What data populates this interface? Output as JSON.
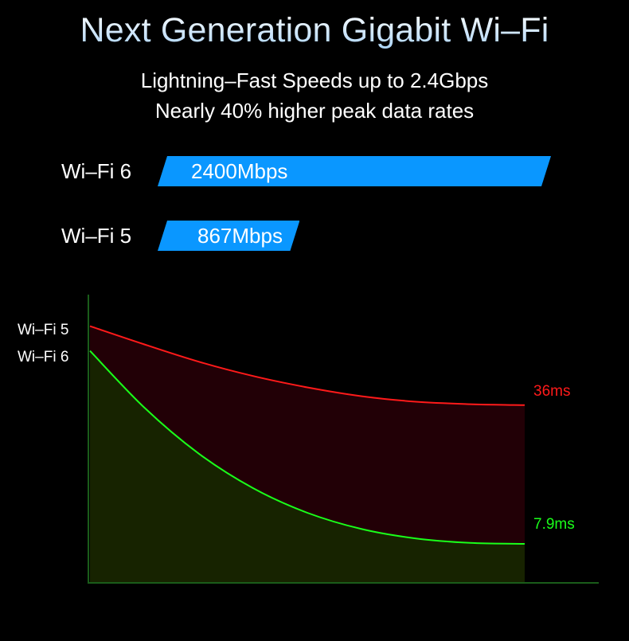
{
  "title": "Next Generation Gigabit Wi–Fi",
  "subtitle_line1": "Lightning–Fast Speeds up to 2.4Gbps",
  "subtitle_line2": "Nearly 40% higher peak data rates",
  "colors": {
    "bar": "#0a97ff",
    "wifi5_line": "#ff1a1a",
    "wifi6_line": "#1aff1a",
    "wifi5_fill": "#220006",
    "wifi6_fill": "#172300",
    "axis": "#1a5c1a"
  },
  "chart_data": [
    {
      "type": "bar",
      "orientation": "horizontal",
      "categories": [
        "Wi–Fi 6",
        "Wi–Fi 5"
      ],
      "values": [
        2400,
        867
      ],
      "value_labels": [
        "2400Mbps",
        "867Mbps"
      ],
      "unit": "Mbps",
      "xlim": [
        0,
        2400
      ]
    },
    {
      "type": "area",
      "series": [
        {
          "name": "Wi–Fi 5",
          "y_label": "Wi–Fi 5",
          "end_label": "36ms",
          "values": [
            52,
            48.3,
            44.8,
            41.9,
            39.6,
            37.8,
            36.7,
            36.2,
            36
          ]
        },
        {
          "name": "Wi–Fi 6",
          "y_label": "Wi–Fi 6",
          "end_label": "7.9ms",
          "values": [
            47,
            35.5,
            26.2,
            19.2,
            14.2,
            10.9,
            9,
            8.1,
            7.9
          ]
        }
      ],
      "ylim": [
        0,
        60
      ],
      "grid": false
    }
  ]
}
